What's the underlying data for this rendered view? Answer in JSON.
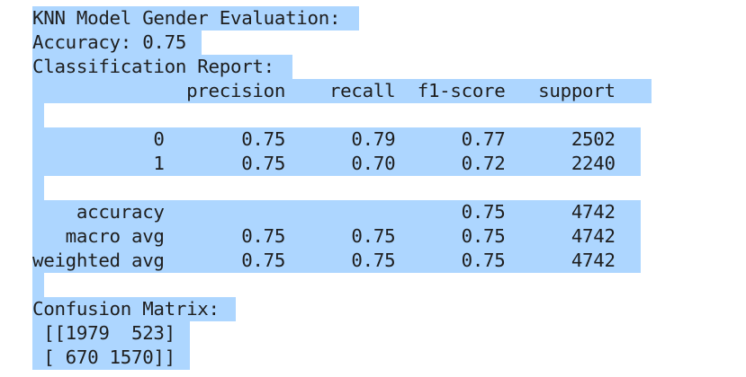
{
  "output": {
    "lines": [
      "KNN Model Gender Evaluation:",
      "Accuracy: 0.75",
      "Classification Report:",
      "              precision    recall  f1-score   support",
      "",
      "           0       0.75      0.79      0.77      2502",
      "           1       0.75      0.70      0.72      2240",
      "",
      "    accuracy                           0.75      4742",
      "   macro avg       0.75      0.75      0.75      4742",
      "weighted avg       0.75      0.75      0.75      4742",
      "",
      "Confusion Matrix:",
      " [[1979  523]",
      " [ 670 1570]]"
    ]
  },
  "colors": {
    "selection": "#add6ff",
    "text": "#1e1e1e",
    "background": "#ffffff"
  }
}
